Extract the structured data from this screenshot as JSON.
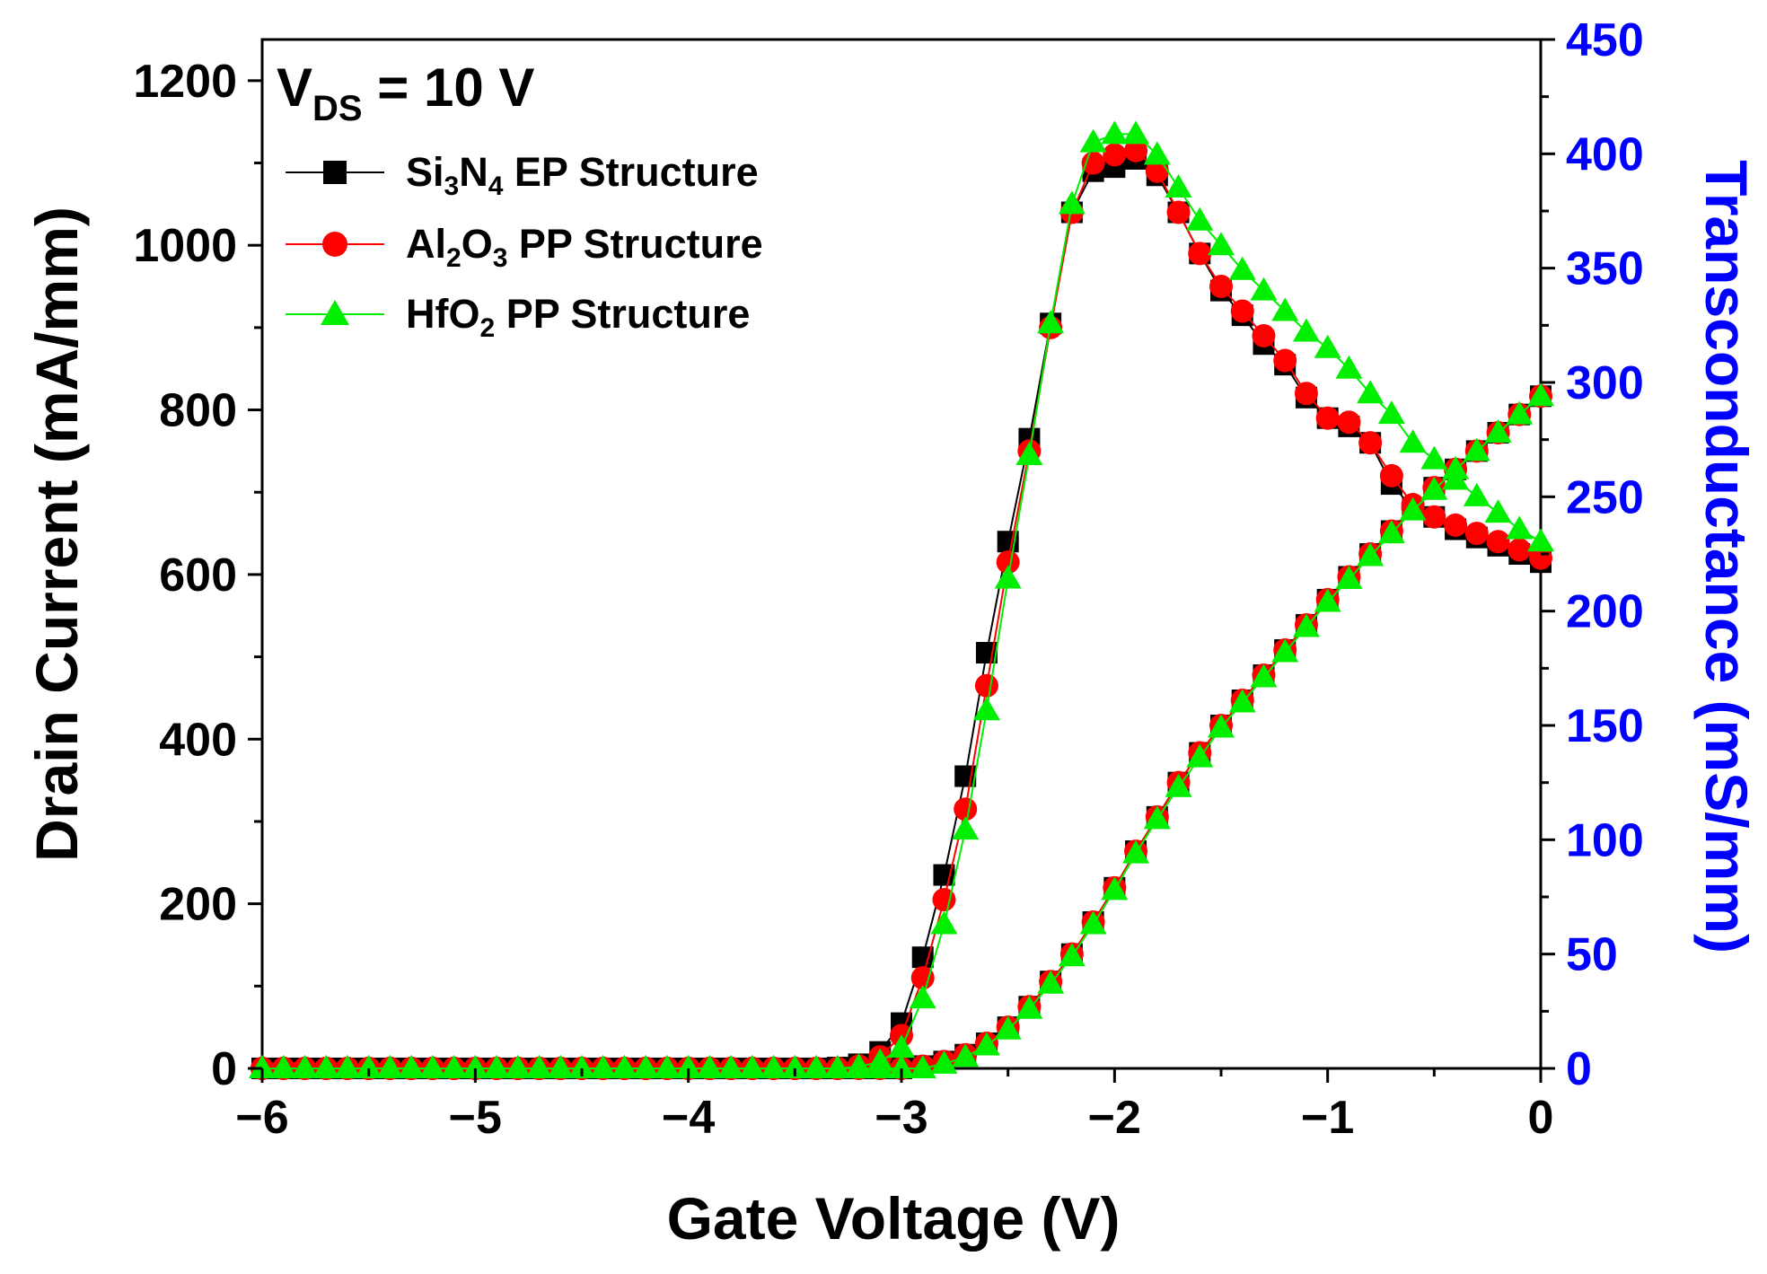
{
  "chart_data": {
    "type": "line",
    "condition_text": {
      "main": "V",
      "sub": "DS",
      "rest": " = 10 V"
    },
    "xlabel": "Gate Voltage (V)",
    "ylabel": "Drain Current (mA/mm)",
    "ylabel_right": "Transconductance (mS/mm)",
    "xlim": [
      -6,
      0
    ],
    "ylim": [
      0,
      1250
    ],
    "ylim_right": [
      0,
      450
    ],
    "xticks": [
      -6,
      -5,
      -4,
      -3,
      -2,
      -1,
      0
    ],
    "xtick_labels": [
      "−6",
      "−5",
      "−4",
      "−3",
      "−2",
      "−1",
      "0"
    ],
    "yticks": [
      0,
      200,
      400,
      600,
      800,
      1000,
      1200
    ],
    "yticks_right": [
      0,
      50,
      100,
      150,
      200,
      250,
      300,
      350,
      400,
      450
    ],
    "grid": false,
    "legend_position": "top-left",
    "legend": [
      {
        "pre": "Si",
        "s1": "3",
        "mid": "N",
        "s2": "4",
        "post": " EP Structure"
      },
      {
        "pre": "Al",
        "s1": "2",
        "mid": "O",
        "s2": "3",
        "post": " PP Structure"
      },
      {
        "pre": "HfO",
        "s1": "2",
        "mid": "",
        "s2": "",
        "post": " PP Structure"
      }
    ],
    "colors": {
      "si3n4": "#000000",
      "al2o3": "#ff0000",
      "hfo2": "#00ee00",
      "right_axis": "#0000ff"
    },
    "x": [
      -6.0,
      -5.9,
      -5.8,
      -5.7,
      -5.6,
      -5.5,
      -5.4,
      -5.3,
      -5.2,
      -5.1,
      -5.0,
      -4.9,
      -4.8,
      -4.7,
      -4.6,
      -4.5,
      -4.4,
      -4.3,
      -4.2,
      -4.1,
      -4.0,
      -3.9,
      -3.8,
      -3.7,
      -3.6,
      -3.5,
      -3.4,
      -3.3,
      -3.2,
      -3.1,
      -3.0,
      -2.9,
      -2.8,
      -2.7,
      -2.6,
      -2.5,
      -2.4,
      -2.3,
      -2.2,
      -2.1,
      -2.0,
      -1.9,
      -1.8,
      -1.7,
      -1.6,
      -1.5,
      -1.4,
      -1.3,
      -1.2,
      -1.1,
      -1.0,
      -0.9,
      -0.8,
      -0.7,
      -0.6,
      -0.5,
      -0.4,
      -0.3,
      -0.2,
      -0.1,
      0.0
    ],
    "series": [
      {
        "name": "Si3N4 EP Structure",
        "quantity": "drain_current",
        "axis": "left",
        "color": "#000000",
        "marker": "square",
        "values": [
          0,
          0,
          0,
          0,
          0,
          0,
          0,
          0,
          0,
          0,
          0,
          0,
          0,
          0,
          0,
          0,
          0,
          0,
          0,
          0,
          0,
          0,
          0,
          0,
          0,
          0,
          0,
          1,
          5,
          20,
          55,
          135,
          235,
          355,
          505,
          640,
          765,
          905,
          1040,
          1090,
          1095,
          1105,
          1085,
          1040,
          990,
          945,
          915,
          880,
          855,
          815,
          790,
          780,
          760,
          710,
          680,
          670,
          655,
          645,
          635,
          625,
          615
        ]
      },
      {
        "name": "Al2O3 PP Structure",
        "quantity": "drain_current",
        "axis": "left",
        "color": "#ff0000",
        "marker": "circle",
        "values": [
          0,
          0,
          0,
          0,
          0,
          0,
          0,
          0,
          0,
          0,
          0,
          0,
          0,
          0,
          0,
          0,
          0,
          0,
          0,
          0,
          0,
          0,
          0,
          0,
          0,
          0,
          0,
          0,
          3,
          14,
          40,
          110,
          205,
          315,
          465,
          615,
          750,
          900,
          1040,
          1100,
          1110,
          1115,
          1090,
          1040,
          990,
          950,
          920,
          890,
          860,
          820,
          790,
          785,
          760,
          720,
          685,
          670,
          660,
          650,
          640,
          630,
          620
        ]
      },
      {
        "name": "HfO2 PP Structure",
        "quantity": "drain_current",
        "axis": "left",
        "color": "#00ee00",
        "marker": "triangle",
        "values": [
          0,
          0,
          0,
          0,
          0,
          0,
          0,
          0,
          0,
          0,
          0,
          0,
          0,
          0,
          0,
          0,
          0,
          0,
          0,
          0,
          0,
          0,
          0,
          0,
          0,
          0,
          0,
          0,
          2,
          8,
          25,
          85,
          175,
          290,
          435,
          595,
          745,
          905,
          1050,
          1125,
          1135,
          1135,
          1110,
          1070,
          1030,
          1000,
          970,
          945,
          920,
          895,
          875,
          850,
          820,
          795,
          760,
          740,
          715,
          695,
          675,
          655,
          640
        ]
      },
      {
        "name": "Si3N4 EP Structure",
        "quantity": "transconductance",
        "axis": "right",
        "color": "#000000",
        "marker": "square",
        "values": [
          0,
          0,
          0,
          0,
          0,
          0,
          0,
          0,
          0,
          0,
          0,
          0,
          0,
          0,
          0,
          0,
          0,
          0,
          0,
          0,
          0,
          0,
          0,
          0,
          0,
          0,
          0,
          0,
          0,
          0,
          0,
          1,
          3,
          6,
          11,
          18,
          27,
          38,
          50,
          64,
          79,
          95,
          110,
          125,
          138,
          150,
          161,
          172,
          183,
          194,
          205,
          215,
          225,
          235,
          245,
          254,
          262,
          270,
          278,
          286,
          294
        ]
      },
      {
        "name": "Al2O3 PP Structure",
        "quantity": "transconductance",
        "axis": "right",
        "color": "#ff0000",
        "marker": "circle",
        "values": [
          0,
          0,
          0,
          0,
          0,
          0,
          0,
          0,
          0,
          0,
          0,
          0,
          0,
          0,
          0,
          0,
          0,
          0,
          0,
          0,
          0,
          0,
          0,
          0,
          0,
          0,
          0,
          0,
          0,
          0,
          0,
          1,
          3,
          6,
          11,
          18,
          27,
          38,
          50,
          64,
          79,
          95,
          110,
          125,
          138,
          150,
          161,
          172,
          183,
          194,
          205,
          215,
          225,
          235,
          245,
          254,
          262,
          270,
          278,
          286,
          294
        ]
      },
      {
        "name": "HfO2 PP Structure",
        "quantity": "transconductance",
        "axis": "right",
        "color": "#00ee00",
        "marker": "triangle",
        "values": [
          0,
          0,
          0,
          0,
          0,
          0,
          0,
          0,
          0,
          0,
          0,
          0,
          0,
          0,
          0,
          0,
          0,
          0,
          0,
          0,
          0,
          0,
          0,
          0,
          0,
          0,
          0,
          0,
          0,
          0,
          0,
          0,
          2,
          5,
          10,
          17,
          26,
          37,
          49,
          63,
          78,
          94,
          109,
          123,
          136,
          149,
          160,
          171,
          182,
          193,
          204,
          214,
          224,
          234,
          244,
          253,
          262,
          270,
          278,
          286,
          294
        ]
      }
    ]
  }
}
